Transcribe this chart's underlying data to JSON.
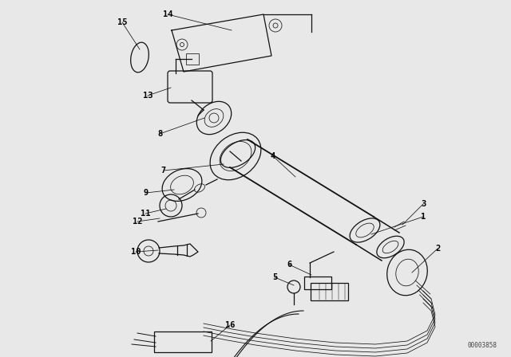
{
  "bg_color": "#e8e8e8",
  "line_color": "#111111",
  "label_color": "#000000",
  "diagram_id": "00003858",
  "lw": 0.9,
  "lt": 0.55,
  "fs": 7.5
}
